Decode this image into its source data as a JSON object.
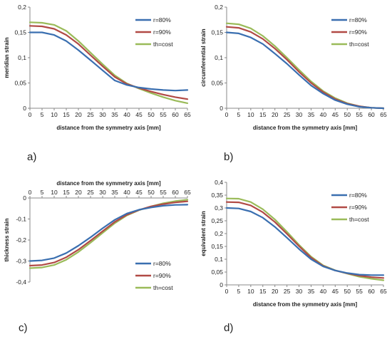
{
  "colors": {
    "r80": "#3a6fb0",
    "r90": "#b14a45",
    "th": "#9abb59",
    "axis": "#888888"
  },
  "panel_labels": [
    "a)",
    "b)",
    "c)",
    "d)"
  ],
  "chart_data": [
    {
      "type": "line",
      "ylabel": "meridian strain",
      "xlabel": "distance from the symmetry axis [mm]",
      "x_ticks": [
        "0",
        "5",
        "10",
        "15",
        "20",
        "25",
        "30",
        "35",
        "40",
        "45",
        "50",
        "55",
        "60",
        "65"
      ],
      "y_ticks": [
        "0",
        "0,05",
        "0,1",
        "0,15",
        "0,2"
      ],
      "xlim": [
        0,
        65
      ],
      "ylim": [
        0,
        0.2
      ],
      "x_axis_position": "bottom",
      "legend_position": "top-right",
      "x": [
        0,
        5,
        10,
        15,
        20,
        25,
        30,
        35,
        40,
        45,
        50,
        55,
        60,
        65
      ],
      "series": [
        {
          "name": "r=80%",
          "color": "#3a6fb0",
          "values": [
            0.15,
            0.15,
            0.145,
            0.133,
            0.115,
            0.095,
            0.075,
            0.055,
            0.046,
            0.041,
            0.038,
            0.036,
            0.035,
            0.036
          ]
        },
        {
          "name": "r=90%",
          "color": "#b14a45",
          "values": [
            0.163,
            0.162,
            0.157,
            0.145,
            0.127,
            0.105,
            0.083,
            0.062,
            0.048,
            0.04,
            0.033,
            0.027,
            0.022,
            0.018
          ]
        },
        {
          "name": "th=cost",
          "color": "#9abb59",
          "values": [
            0.17,
            0.169,
            0.165,
            0.153,
            0.133,
            0.11,
            0.087,
            0.065,
            0.049,
            0.039,
            0.03,
            0.022,
            0.015,
            0.01
          ]
        }
      ]
    },
    {
      "type": "line",
      "ylabel": "circumferential strain",
      "xlabel": "distance from the symmetry axis [mm]",
      "x_ticks": [
        "0",
        "5",
        "10",
        "15",
        "20",
        "25",
        "30",
        "35",
        "40",
        "45",
        "50",
        "55",
        "60",
        "65"
      ],
      "y_ticks": [
        "0",
        "0,05",
        "0,1",
        "0,15",
        "0,2"
      ],
      "xlim": [
        0,
        65
      ],
      "ylim": [
        0,
        0.2
      ],
      "x_axis_position": "bottom",
      "legend_position": "top-right",
      "x": [
        0,
        5,
        10,
        15,
        20,
        25,
        30,
        35,
        40,
        45,
        50,
        55,
        60,
        65
      ],
      "series": [
        {
          "name": "r=80%",
          "color": "#3a6fb0",
          "values": [
            0.15,
            0.148,
            0.14,
            0.127,
            0.108,
            0.088,
            0.066,
            0.045,
            0.029,
            0.016,
            0.008,
            0.003,
            0.001,
            0.0
          ]
        },
        {
          "name": "r=90%",
          "color": "#b14a45",
          "values": [
            0.161,
            0.159,
            0.151,
            0.137,
            0.118,
            0.096,
            0.072,
            0.05,
            0.032,
            0.018,
            0.009,
            0.004,
            0.001,
            0.0
          ]
        },
        {
          "name": "th=cost",
          "color": "#9abb59",
          "values": [
            0.168,
            0.166,
            0.158,
            0.143,
            0.123,
            0.1,
            0.076,
            0.053,
            0.034,
            0.02,
            0.01,
            0.004,
            0.001,
            0.0
          ]
        }
      ]
    },
    {
      "type": "line",
      "ylabel": "thickness strain",
      "xlabel": "distance from the symmetry axis [mm]",
      "x_ticks": [
        "0",
        "5",
        "10",
        "15",
        "20",
        "25",
        "30",
        "35",
        "40",
        "45",
        "50",
        "55",
        "60",
        "65"
      ],
      "y_ticks": [
        "0",
        "-0,1",
        "-0,2",
        "-0,3",
        "-0,4"
      ],
      "xlim": [
        0,
        65
      ],
      "ylim": [
        -0.4,
        0
      ],
      "x_axis_position": "top",
      "legend_position": "bottom-right",
      "x": [
        0,
        5,
        10,
        15,
        20,
        25,
        30,
        35,
        40,
        45,
        50,
        55,
        60,
        65
      ],
      "series": [
        {
          "name": "r=80%",
          "color": "#3a6fb0",
          "values": [
            -0.3,
            -0.297,
            -0.286,
            -0.262,
            -0.227,
            -0.187,
            -0.144,
            -0.104,
            -0.074,
            -0.056,
            -0.045,
            -0.037,
            -0.033,
            -0.032
          ]
        },
        {
          "name": "r=90%",
          "color": "#b14a45",
          "values": [
            -0.322,
            -0.319,
            -0.307,
            -0.282,
            -0.246,
            -0.203,
            -0.158,
            -0.114,
            -0.08,
            -0.057,
            -0.04,
            -0.029,
            -0.021,
            -0.016
          ]
        },
        {
          "name": "th=cost",
          "color": "#9abb59",
          "values": [
            -0.334,
            -0.331,
            -0.319,
            -0.294,
            -0.257,
            -0.213,
            -0.166,
            -0.12,
            -0.083,
            -0.058,
            -0.04,
            -0.025,
            -0.015,
            -0.008
          ]
        }
      ]
    },
    {
      "type": "line",
      "ylabel": "equivalent strain",
      "xlabel": "distance from the symmetry axis [mm]",
      "x_ticks": [
        "0",
        "5",
        "10",
        "15",
        "20",
        "25",
        "30",
        "35",
        "40",
        "45",
        "50",
        "55",
        "60",
        "65"
      ],
      "y_ticks": [
        "0",
        "0,05",
        "0,1",
        "0,15",
        "0,2",
        "0,25",
        "0,3",
        "0,35",
        "0,4"
      ],
      "xlim": [
        0,
        65
      ],
      "ylim": [
        0,
        0.4
      ],
      "x_axis_position": "bottom",
      "legend_position": "top-right",
      "x": [
        0,
        5,
        10,
        15,
        20,
        25,
        30,
        35,
        40,
        45,
        50,
        55,
        60,
        65
      ],
      "series": [
        {
          "name": "r=80%",
          "color": "#3a6fb0",
          "values": [
            0.3,
            0.298,
            0.286,
            0.262,
            0.226,
            0.184,
            0.14,
            0.1,
            0.072,
            0.056,
            0.046,
            0.04,
            0.038,
            0.038
          ]
        },
        {
          "name": "r=90%",
          "color": "#b14a45",
          "values": [
            0.323,
            0.322,
            0.31,
            0.283,
            0.245,
            0.199,
            0.151,
            0.106,
            0.074,
            0.056,
            0.045,
            0.036,
            0.03,
            0.027
          ]
        },
        {
          "name": "th=cost",
          "color": "#9abb59",
          "values": [
            0.337,
            0.336,
            0.323,
            0.295,
            0.255,
            0.207,
            0.156,
            0.11,
            0.076,
            0.057,
            0.044,
            0.032,
            0.024,
            0.018
          ]
        }
      ]
    }
  ]
}
